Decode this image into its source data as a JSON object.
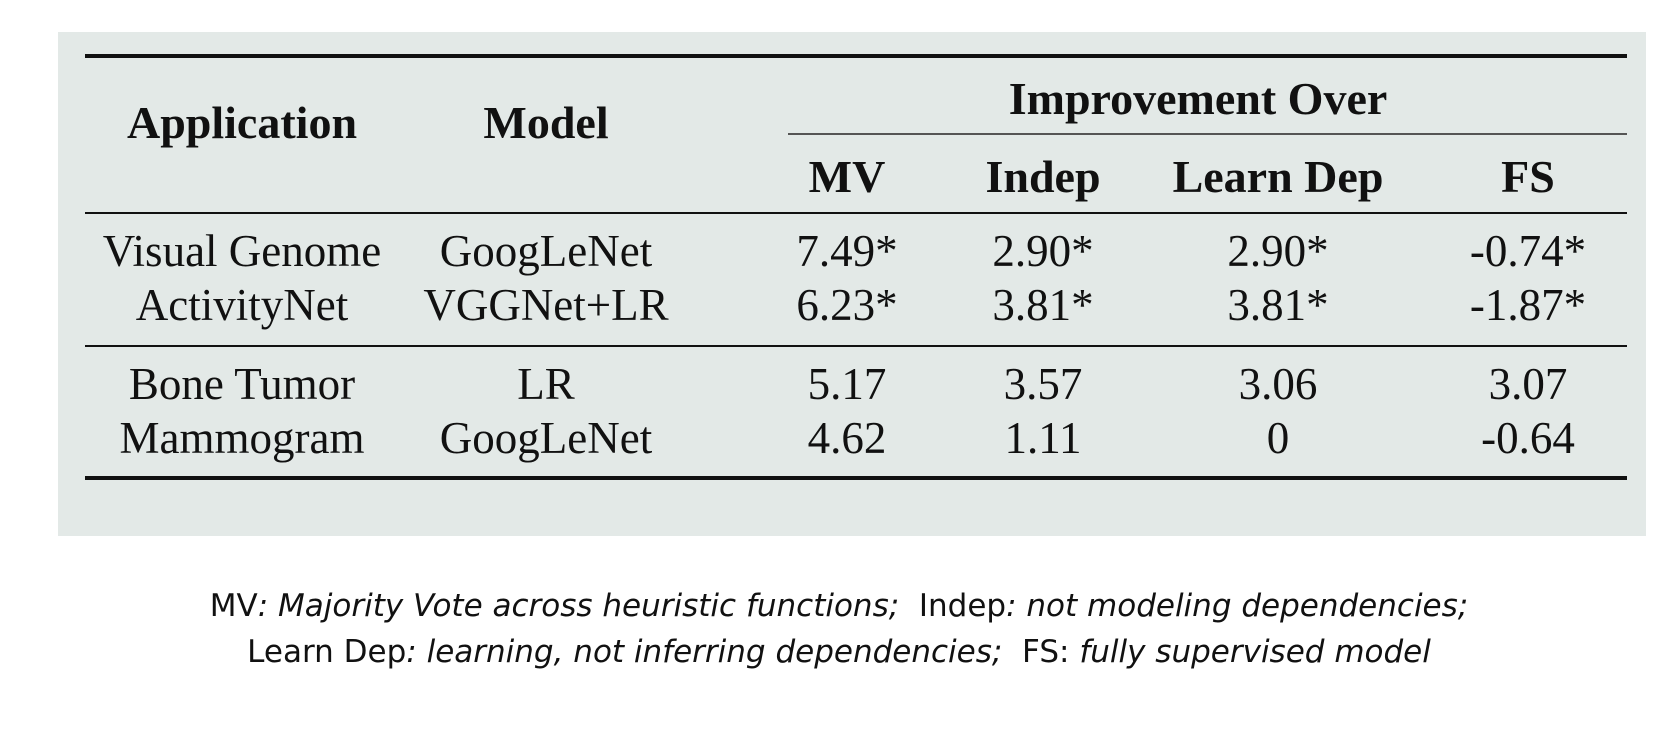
{
  "table": {
    "headers": {
      "application": "Application",
      "model": "Model",
      "group": "Improvement Over",
      "mv": "MV",
      "indep": "Indep",
      "learn_dep": "Learn Dep",
      "fs": "FS"
    },
    "rows": [
      {
        "application": "Visual Genome",
        "model": "GoogLeNet",
        "mv": "7.49*",
        "indep": "2.90*",
        "learn_dep": "2.90*",
        "fs": "-0.74*"
      },
      {
        "application": "ActivityNet",
        "model": "VGGNet+LR",
        "mv": "6.23*",
        "indep": "3.81*",
        "learn_dep": "3.81*",
        "fs": "-1.87*"
      },
      {
        "application": "Bone Tumor",
        "model": "LR",
        "mv": "5.17",
        "indep": "3.57",
        "learn_dep": "3.06",
        "fs": "3.07"
      },
      {
        "application": "Mammogram",
        "model": "GoogLeNet",
        "mv": "4.62",
        "indep": "1.11",
        "learn_dep": "0",
        "fs": "-0.64"
      }
    ]
  },
  "caption": {
    "line1": [
      {
        "term": "MV",
        "desc": ": Majority Vote across heuristic functions;"
      },
      {
        "term": "Indep",
        "desc": ": not modeling dependencies;"
      }
    ],
    "line2": [
      {
        "term": "Learn Dep",
        "desc": ": learning, not inferring dependencies;"
      },
      {
        "term": "FS:",
        "desc": " fully supervised model"
      }
    ]
  }
}
